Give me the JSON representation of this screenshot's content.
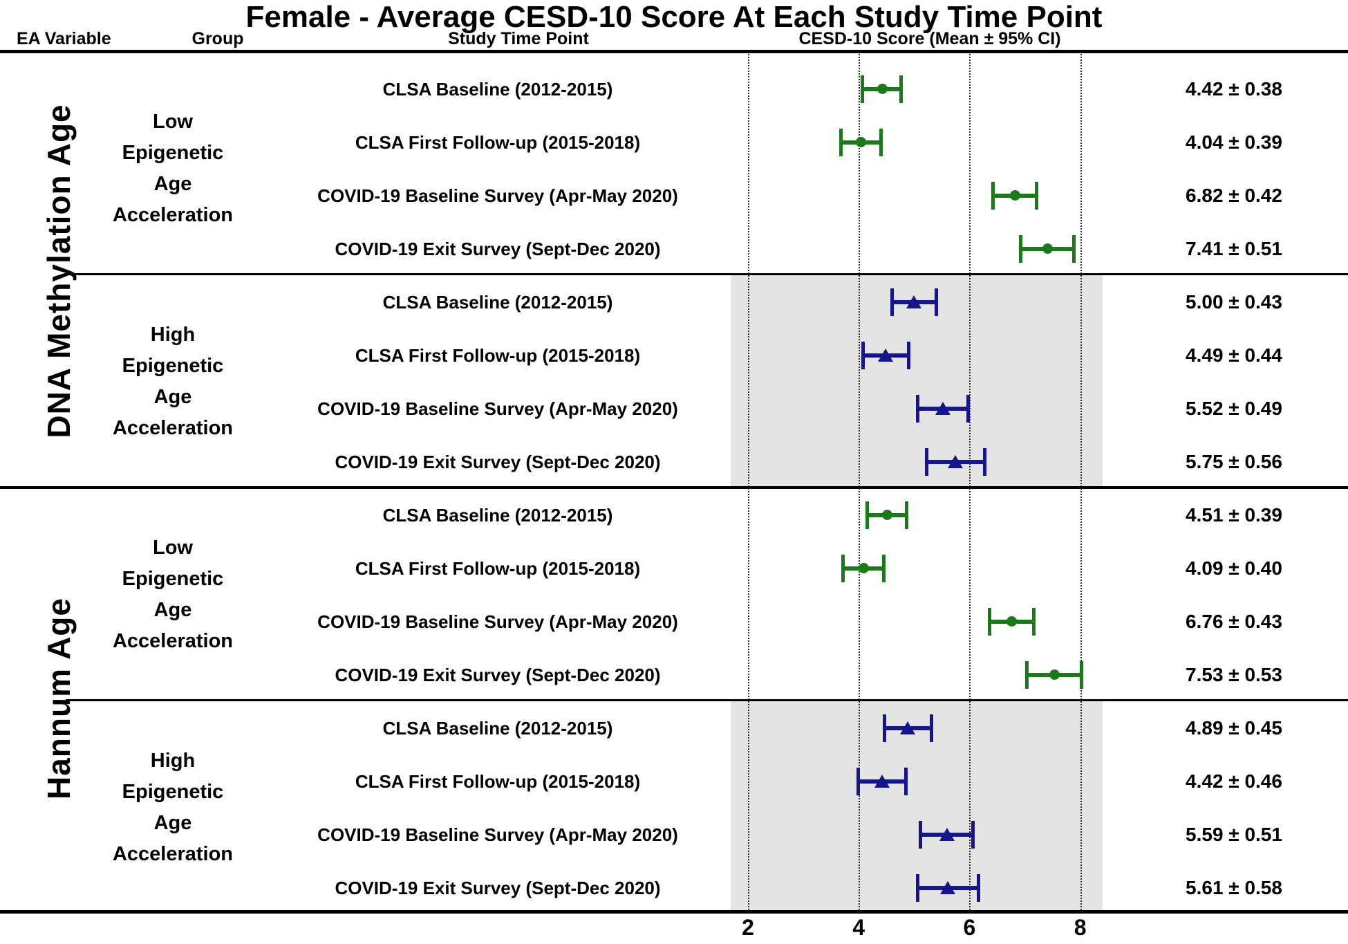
{
  "chart_data": {
    "type": "forest",
    "title": "Female - Average CESD-10 Score At Each Study Time Point",
    "columns": {
      "ea_variable": "EA Variable",
      "group": "Group",
      "time_point": "Study Time Point",
      "score": "CESD-10 Score (Mean ± 95% CI)"
    },
    "x_axis": {
      "ticks": [
        2,
        4,
        6,
        8
      ],
      "grid": "dotted",
      "range_shown": [
        1.7,
        8.4
      ]
    },
    "colors": {
      "low_group_marker": "#1a7a1a",
      "high_group_marker": "#15158c",
      "shaded_band": "#e4e4e4",
      "text": "#000000"
    },
    "legend_position": "none",
    "sections": [
      {
        "ea_variable": "DNA Methylation Age",
        "groups": [
          {
            "name_lines": [
              "Low",
              "Epigenetic",
              "Age",
              "Acceleration"
            ],
            "marker": "circle",
            "shaded": false,
            "rows": [
              {
                "time": "CLSA Baseline (2012-2015)",
                "mean": 4.42,
                "ci": 0.38,
                "label": "4.42 ± 0.38"
              },
              {
                "time": "CLSA First Follow-up (2015-2018)",
                "mean": 4.04,
                "ci": 0.39,
                "label": "4.04 ± 0.39"
              },
              {
                "time": "COVID-19 Baseline Survey (Apr-May 2020)",
                "mean": 6.82,
                "ci": 0.42,
                "label": "6.82 ± 0.42"
              },
              {
                "time": "COVID-19 Exit Survey (Sept-Dec 2020)",
                "mean": 7.41,
                "ci": 0.51,
                "label": "7.41 ± 0.51"
              }
            ]
          },
          {
            "name_lines": [
              "High",
              "Epigenetic",
              "Age",
              "Acceleration"
            ],
            "marker": "triangle",
            "shaded": true,
            "rows": [
              {
                "time": "CLSA Baseline (2012-2015)",
                "mean": 5.0,
                "ci": 0.43,
                "label": "5.00 ± 0.43"
              },
              {
                "time": "CLSA First Follow-up (2015-2018)",
                "mean": 4.49,
                "ci": 0.44,
                "label": "4.49 ± 0.44"
              },
              {
                "time": "COVID-19 Baseline Survey (Apr-May 2020)",
                "mean": 5.52,
                "ci": 0.49,
                "label": "5.52 ± 0.49"
              },
              {
                "time": "COVID-19 Exit Survey (Sept-Dec 2020)",
                "mean": 5.75,
                "ci": 0.56,
                "label": "5.75 ± 0.56"
              }
            ]
          }
        ]
      },
      {
        "ea_variable": "Hannum Age",
        "groups": [
          {
            "name_lines": [
              "Low",
              "Epigenetic",
              "Age",
              "Acceleration"
            ],
            "marker": "circle",
            "shaded": false,
            "rows": [
              {
                "time": "CLSA Baseline (2012-2015)",
                "mean": 4.51,
                "ci": 0.39,
                "label": "4.51 ± 0.39"
              },
              {
                "time": "CLSA First Follow-up (2015-2018)",
                "mean": 4.09,
                "ci": 0.4,
                "label": "4.09 ± 0.40"
              },
              {
                "time": "COVID-19 Baseline Survey (Apr-May 2020)",
                "mean": 6.76,
                "ci": 0.43,
                "label": "6.76 ± 0.43"
              },
              {
                "time": "COVID-19 Exit Survey (Sept-Dec 2020)",
                "mean": 7.53,
                "ci": 0.53,
                "label": "7.53 ± 0.53"
              }
            ]
          },
          {
            "name_lines": [
              "High",
              "Epigenetic",
              "Age",
              "Acceleration"
            ],
            "marker": "triangle",
            "shaded": true,
            "rows": [
              {
                "time": "CLSA Baseline (2012-2015)",
                "mean": 4.89,
                "ci": 0.45,
                "label": "4.89 ± 0.45"
              },
              {
                "time": "CLSA First Follow-up (2015-2018)",
                "mean": 4.42,
                "ci": 0.46,
                "label": "4.42 ± 0.46"
              },
              {
                "time": "COVID-19 Baseline Survey (Apr-May 2020)",
                "mean": 5.59,
                "ci": 0.51,
                "label": "5.59 ± 0.51"
              },
              {
                "time": "COVID-19 Exit Survey (Sept-Dec 2020)",
                "mean": 5.61,
                "ci": 0.58,
                "label": "5.61 ± 0.58"
              }
            ]
          }
        ]
      }
    ]
  }
}
